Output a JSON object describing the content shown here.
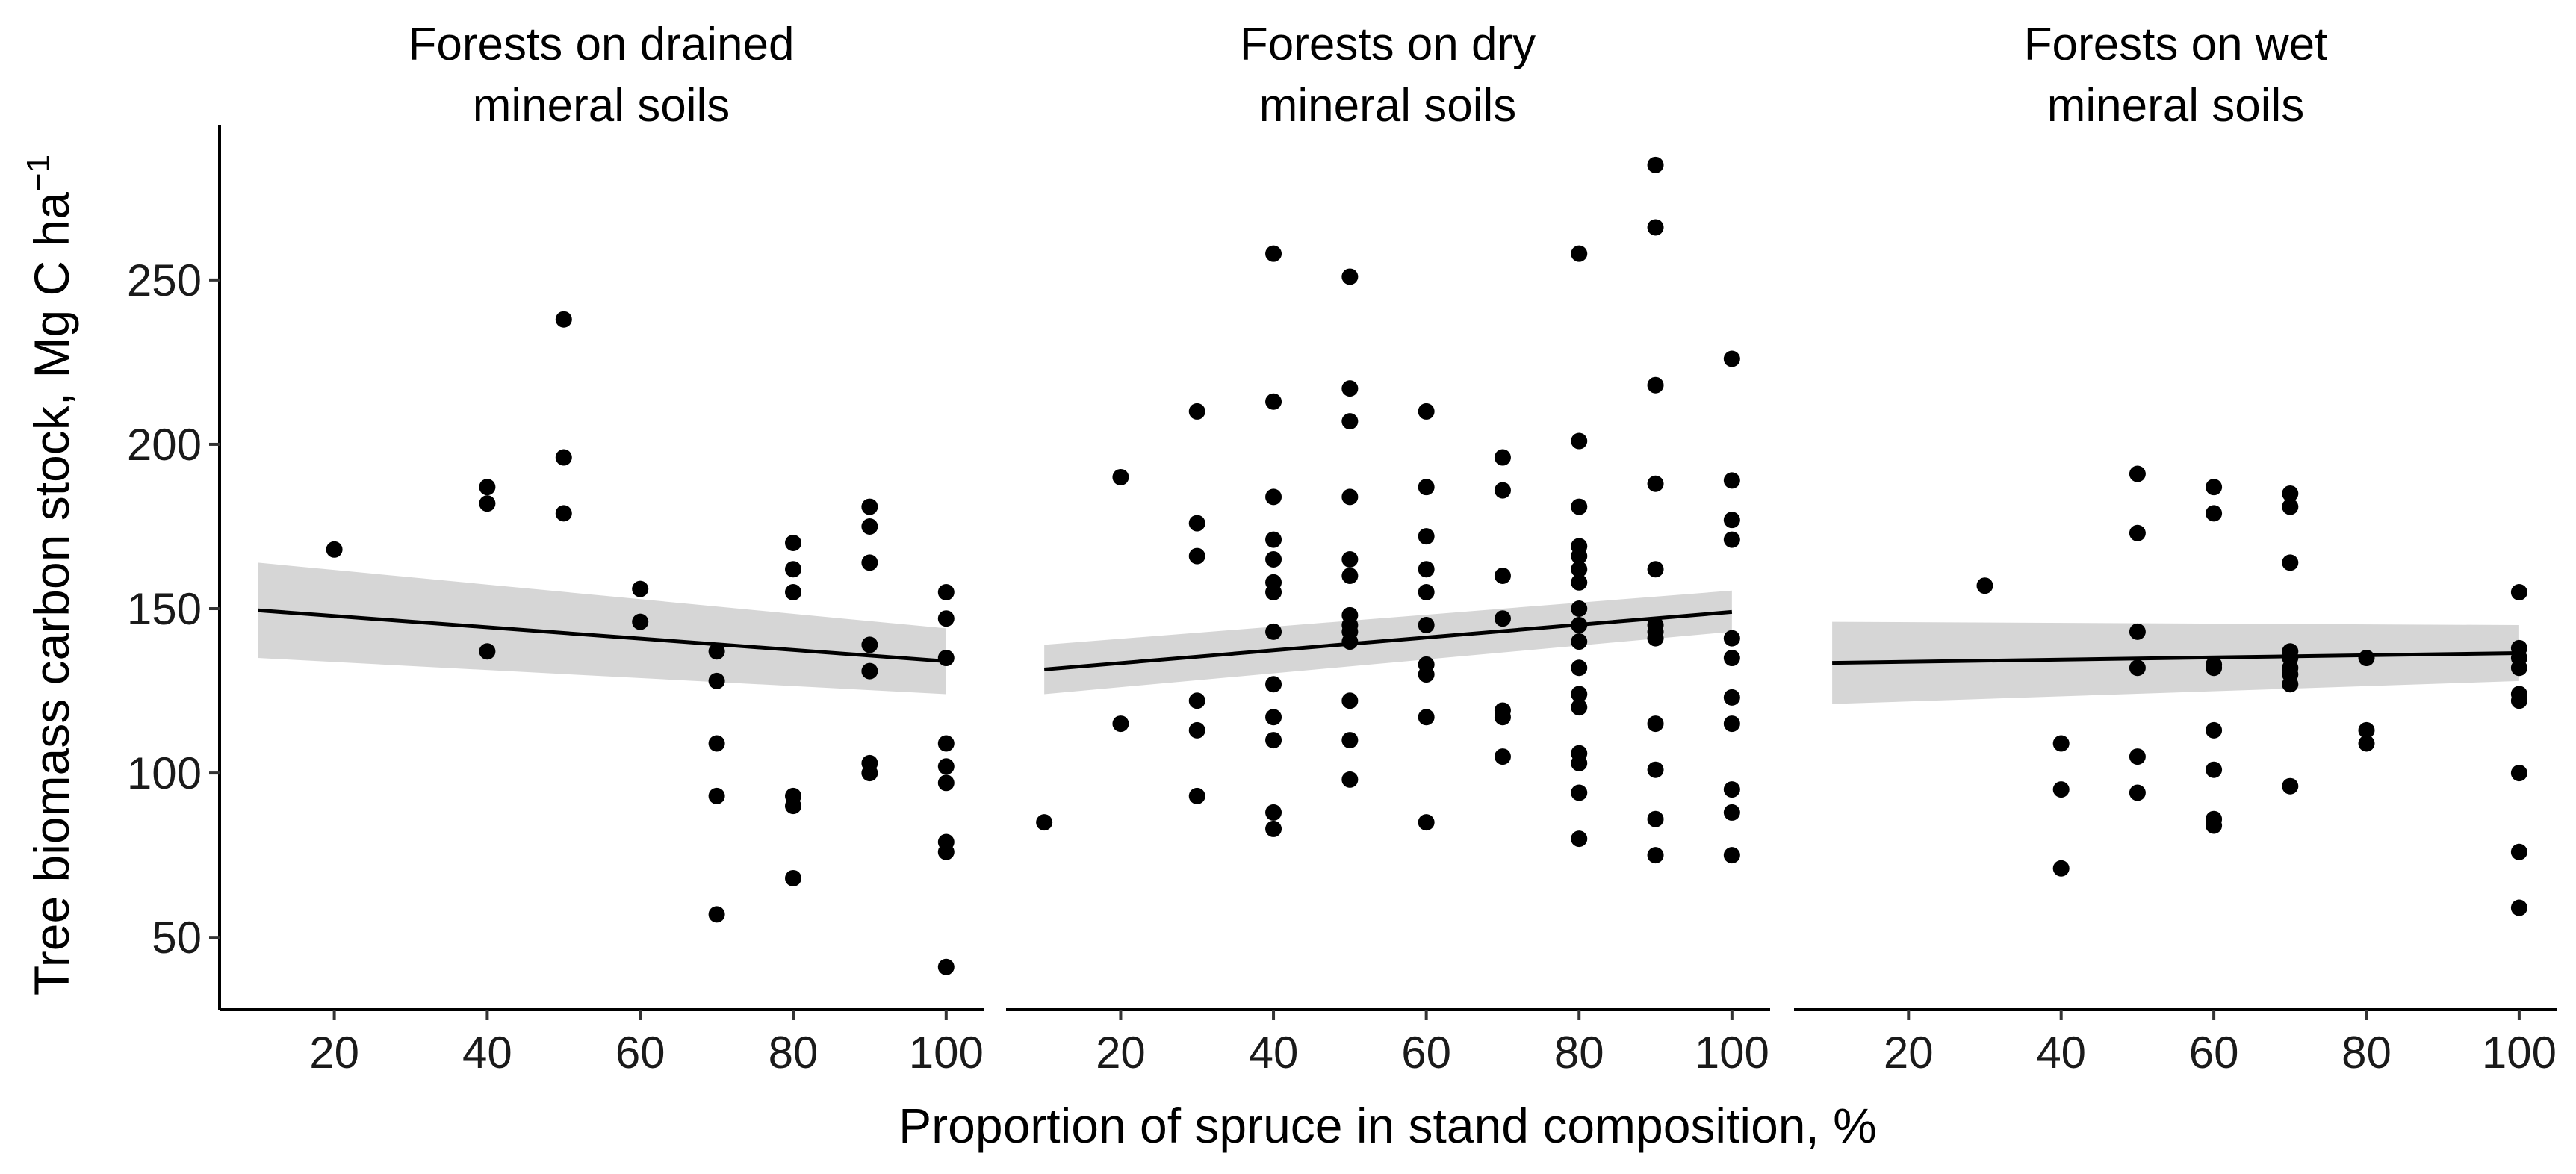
{
  "figure": {
    "ylabel": "Tree biomass carbon stock, Mg C ha",
    "ylabel_sup": "−1",
    "xlabel": "Proportion of spruce in stand composition, %"
  },
  "chart_data": {
    "type": "scatter",
    "layout": "facets",
    "x_ticks": [
      20,
      40,
      60,
      80,
      100
    ],
    "y_ticks": [
      50,
      100,
      150,
      200,
      250
    ],
    "xlim": [
      5,
      105
    ],
    "ylim": [
      28,
      297
    ],
    "facets": [
      {
        "title_line1": "Forests on drained",
        "title_line2": "mineral soils",
        "points": [
          [
            20,
            168
          ],
          [
            40,
            187
          ],
          [
            40,
            182
          ],
          [
            40,
            137
          ],
          [
            50,
            238
          ],
          [
            50,
            196
          ],
          [
            50,
            179
          ],
          [
            60,
            156
          ],
          [
            60,
            146
          ],
          [
            70,
            137
          ],
          [
            70,
            128
          ],
          [
            70,
            109
          ],
          [
            70,
            93
          ],
          [
            70,
            57
          ],
          [
            80,
            170
          ],
          [
            80,
            162
          ],
          [
            80,
            155
          ],
          [
            80,
            93
          ],
          [
            80,
            90
          ],
          [
            80,
            68
          ],
          [
            90,
            181
          ],
          [
            90,
            175
          ],
          [
            90,
            164
          ],
          [
            90,
            139
          ],
          [
            90,
            131
          ],
          [
            90,
            103
          ],
          [
            90,
            100
          ],
          [
            100,
            155
          ],
          [
            100,
            147
          ],
          [
            100,
            135
          ],
          [
            100,
            109
          ],
          [
            100,
            102
          ],
          [
            100,
            97
          ],
          [
            100,
            79
          ],
          [
            100,
            76
          ],
          [
            100,
            41
          ]
        ],
        "fit": {
          "x": [
            10,
            100
          ],
          "y": [
            149.5,
            134
          ],
          "ci_lower": [
            135,
            124
          ],
          "ci_upper": [
            164,
            144
          ]
        }
      },
      {
        "title_line1": "Forests on dry",
        "title_line2": "mineral soils",
        "points": [
          [
            10,
            85
          ],
          [
            20,
            190
          ],
          [
            20,
            115
          ],
          [
            30,
            210
          ],
          [
            30,
            176
          ],
          [
            30,
            166
          ],
          [
            30,
            122
          ],
          [
            30,
            113
          ],
          [
            30,
            93
          ],
          [
            40,
            258
          ],
          [
            40,
            213
          ],
          [
            40,
            184
          ],
          [
            40,
            171
          ],
          [
            40,
            165
          ],
          [
            40,
            158
          ],
          [
            40,
            155
          ],
          [
            40,
            143
          ],
          [
            40,
            127
          ],
          [
            40,
            117
          ],
          [
            40,
            110
          ],
          [
            40,
            88
          ],
          [
            40,
            83
          ],
          [
            50,
            251
          ],
          [
            50,
            217
          ],
          [
            50,
            207
          ],
          [
            50,
            184
          ],
          [
            50,
            165
          ],
          [
            50,
            160
          ],
          [
            50,
            148
          ],
          [
            50,
            145
          ],
          [
            50,
            143
          ],
          [
            50,
            140
          ],
          [
            50,
            122
          ],
          [
            50,
            110
          ],
          [
            50,
            98
          ],
          [
            60,
            210
          ],
          [
            60,
            187
          ],
          [
            60,
            172
          ],
          [
            60,
            162
          ],
          [
            60,
            155
          ],
          [
            60,
            145
          ],
          [
            60,
            133
          ],
          [
            60,
            130
          ],
          [
            60,
            117
          ],
          [
            60,
            85
          ],
          [
            70,
            196
          ],
          [
            70,
            186
          ],
          [
            70,
            160
          ],
          [
            70,
            147
          ],
          [
            70,
            119
          ],
          [
            70,
            117
          ],
          [
            70,
            105
          ],
          [
            80,
            258
          ],
          [
            80,
            201
          ],
          [
            80,
            181
          ],
          [
            80,
            169
          ],
          [
            80,
            166
          ],
          [
            80,
            162
          ],
          [
            80,
            158
          ],
          [
            80,
            150
          ],
          [
            80,
            145
          ],
          [
            80,
            140
          ],
          [
            80,
            132
          ],
          [
            80,
            124
          ],
          [
            80,
            120
          ],
          [
            80,
            106
          ],
          [
            80,
            103
          ],
          [
            80,
            94
          ],
          [
            80,
            80
          ],
          [
            90,
            285
          ],
          [
            90,
            266
          ],
          [
            90,
            218
          ],
          [
            90,
            188
          ],
          [
            90,
            162
          ],
          [
            90,
            145
          ],
          [
            90,
            143
          ],
          [
            90,
            141
          ],
          [
            90,
            115
          ],
          [
            90,
            101
          ],
          [
            90,
            86
          ],
          [
            90,
            75
          ],
          [
            100,
            226
          ],
          [
            100,
            189
          ],
          [
            100,
            177
          ],
          [
            100,
            171
          ],
          [
            100,
            141
          ],
          [
            100,
            135
          ],
          [
            100,
            123
          ],
          [
            100,
            115
          ],
          [
            100,
            95
          ],
          [
            100,
            88
          ],
          [
            100,
            75
          ]
        ],
        "fit": {
          "x": [
            10,
            100
          ],
          "y": [
            131.5,
            149
          ],
          "ci_lower": [
            124,
            143
          ],
          "ci_upper": [
            139,
            155.5
          ]
        }
      },
      {
        "title_line1": "Forests on wet",
        "title_line2": "mineral soils",
        "points": [
          [
            30,
            157
          ],
          [
            40,
            109
          ],
          [
            40,
            95
          ],
          [
            40,
            71
          ],
          [
            50,
            191
          ],
          [
            50,
            173
          ],
          [
            50,
            143
          ],
          [
            50,
            132
          ],
          [
            50,
            105
          ],
          [
            50,
            94
          ],
          [
            60,
            187
          ],
          [
            60,
            179
          ],
          [
            60,
            133
          ],
          [
            60,
            132
          ],
          [
            60,
            113
          ],
          [
            60,
            101
          ],
          [
            60,
            86
          ],
          [
            60,
            84
          ],
          [
            70,
            185
          ],
          [
            70,
            181
          ],
          [
            70,
            164
          ],
          [
            70,
            137
          ],
          [
            70,
            135
          ],
          [
            70,
            132
          ],
          [
            70,
            130
          ],
          [
            70,
            127
          ],
          [
            70,
            96
          ],
          [
            80,
            135
          ],
          [
            80,
            113
          ],
          [
            80,
            109
          ],
          [
            100,
            155
          ],
          [
            100,
            138
          ],
          [
            100,
            135
          ],
          [
            100,
            132
          ],
          [
            100,
            124
          ],
          [
            100,
            122
          ],
          [
            100,
            100
          ],
          [
            100,
            76
          ],
          [
            100,
            59
          ]
        ],
        "fit": {
          "x": [
            10,
            100
          ],
          "y": [
            133.5,
            136.5
          ],
          "ci_lower": [
            121,
            128
          ],
          "ci_upper": [
            146,
            145
          ]
        }
      }
    ]
  }
}
